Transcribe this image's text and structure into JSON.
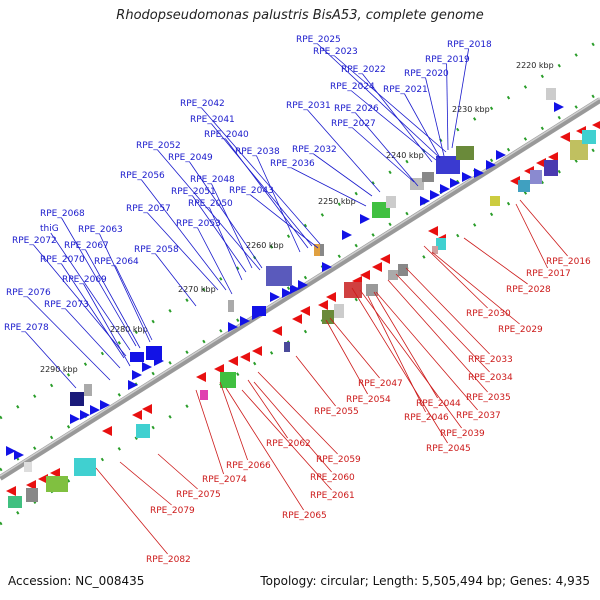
{
  "title": "Rhodopseudomonas palustris BisA53, complete genome",
  "footer": {
    "accession": "Accession: NC_008435",
    "summary": "Topology: circular; Length: 5,505,494 bp; Genes: 4,935"
  },
  "colors": {
    "forward": "#1010e0",
    "reverse": "#e01010",
    "backbone": "#999999"
  },
  "ticks": [
    "2220 kbp",
    "2230 kbp",
    "2240 kbp",
    "2250 kbp",
    "2260 kbp",
    "2270 kbp",
    "2280 kbp",
    "2290 kbp"
  ],
  "labels_top": [
    "RPE_2025",
    "RPE_2023",
    "RPE_2018",
    "RPE_2022",
    "RPE_2019",
    "RPE_2020",
    "RPE_2024",
    "RPE_2021",
    "RPE_2042",
    "RPE_2031",
    "RPE_2026",
    "RPE_2041",
    "RPE_2027",
    "RPE_2040",
    "RPE_2052",
    "RPE_2038",
    "RPE_2032",
    "RPE_2049",
    "RPE_2036",
    "RPE_2048",
    "RPE_2056",
    "RPE_2051",
    "RPE_2043",
    "RPE_2050",
    "RPE_2057",
    "RPE_2053",
    "RPE_2068",
    "RPE_2063",
    "thiG",
    "RPE_2072",
    "RPE_2067",
    "RPE_2058",
    "RPE_2070",
    "RPE_2064",
    "RPE_2069",
    "RPE_2076",
    "RPE_2073",
    "RPE_2078"
  ],
  "labels_bottom": [
    "RPE_2016",
    "RPE_2017",
    "RPE_2028",
    "RPE_2030",
    "RPE_2029",
    "RPE_2033",
    "RPE_2034",
    "RPE_2047",
    "RPE_2035",
    "RPE_2054",
    "RPE_2044",
    "RPE_2055",
    "RPE_2046",
    "RPE_2037",
    "RPE_2039",
    "RPE_2045",
    "RPE_2062",
    "RPE_2059",
    "RPE_2066",
    "RPE_2060",
    "RPE_2074",
    "RPE_2061",
    "RPE_2075",
    "RPE_2065",
    "RPE_2079",
    "RPE_2082"
  ]
}
